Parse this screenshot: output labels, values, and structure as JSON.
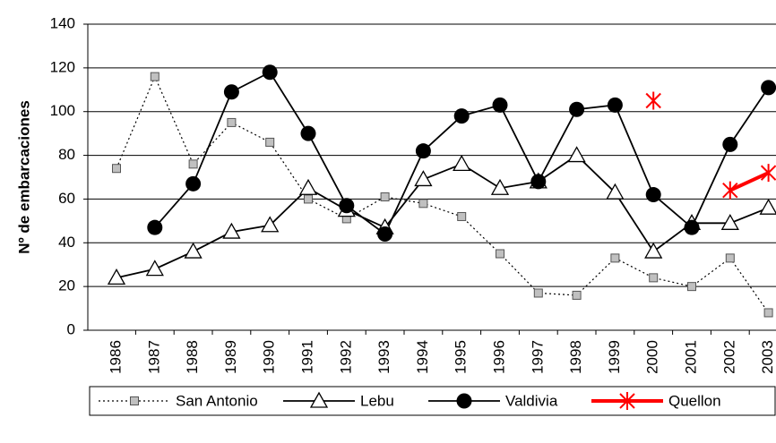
{
  "chart_data": {
    "type": "line",
    "y_label": "Nº de embarcaciones",
    "categories": [
      "1986",
      "1987",
      "1988",
      "1989",
      "1990",
      "1991",
      "1992",
      "1993",
      "1994",
      "1995",
      "1996",
      "1997",
      "1998",
      "1999",
      "2000",
      "2001",
      "2002",
      "2003"
    ],
    "series": [
      {
        "name": "San Antonio",
        "color": "#000000",
        "marker": "square",
        "dashed": true,
        "values": [
          74,
          116,
          76,
          95,
          86,
          60,
          51,
          61,
          58,
          52,
          35,
          17,
          16,
          33,
          24,
          20,
          33,
          8
        ]
      },
      {
        "name": "Lebu",
        "color": "#000000",
        "marker": "triangle",
        "dashed": false,
        "values": [
          24,
          28,
          36,
          45,
          48,
          65,
          55,
          47,
          69,
          76,
          65,
          68,
          80,
          63,
          36,
          49,
          49,
          56
        ]
      },
      {
        "name": "Valdivia",
        "color": "#000000",
        "marker": "circle",
        "dashed": false,
        "values": [
          null,
          47,
          67,
          109,
          118,
          90,
          57,
          44,
          82,
          98,
          103,
          68,
          101,
          103,
          62,
          47,
          85,
          111
        ]
      },
      {
        "name": "Quellon",
        "color": "#ff0000",
        "marker": "asterisk",
        "dashed": false,
        "values": [
          null,
          null,
          null,
          null,
          null,
          null,
          null,
          null,
          null,
          null,
          null,
          null,
          null,
          null,
          105,
          null,
          64,
          72
        ]
      }
    ],
    "ylim": [
      0,
      140
    ],
    "yticks": [
      0,
      20,
      40,
      60,
      80,
      100,
      120,
      140
    ],
    "grid": true
  }
}
